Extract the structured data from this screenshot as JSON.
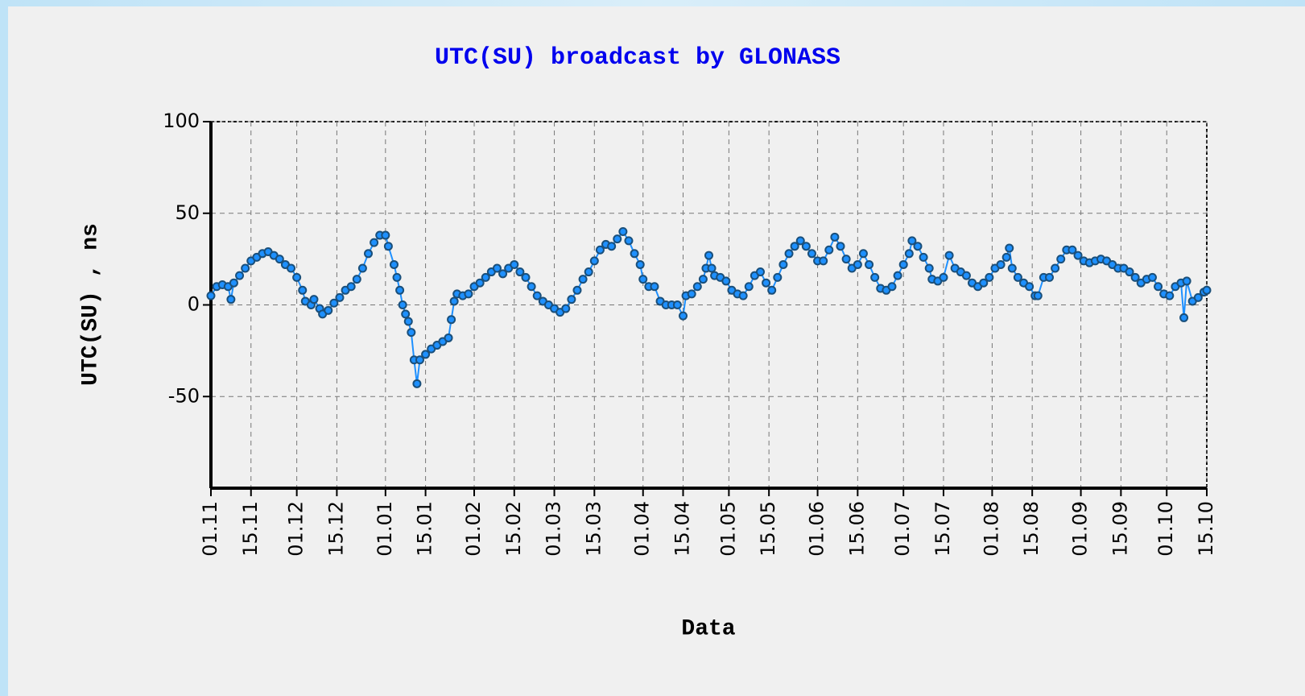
{
  "chart_data": {
    "type": "line",
    "title": "UTC(SU) broadcast by GLONASS",
    "x_label": "Data",
    "y_label": "UTC(SU) , ns",
    "color": "#1e90ff",
    "marker_color": "#1a4f7a",
    "grid": true,
    "xlim": [
      0,
      348
    ],
    "ylim": [
      -100,
      100
    ],
    "yticks": [
      -50,
      0,
      50,
      100
    ],
    "xticks": [
      {
        "value": 0,
        "label": "01.11"
      },
      {
        "value": 14,
        "label": "15.11"
      },
      {
        "value": 30,
        "label": "01.12"
      },
      {
        "value": 44,
        "label": "15.12"
      },
      {
        "value": 61,
        "label": "01.01"
      },
      {
        "value": 75,
        "label": "15.01"
      },
      {
        "value": 92,
        "label": "01.02"
      },
      {
        "value": 106,
        "label": "15.02"
      },
      {
        "value": 120,
        "label": "01.03"
      },
      {
        "value": 134,
        "label": "15.03"
      },
      {
        "value": 151,
        "label": "01.04"
      },
      {
        "value": 165,
        "label": "15.04"
      },
      {
        "value": 181,
        "label": "01.05"
      },
      {
        "value": 195,
        "label": "15.05"
      },
      {
        "value": 212,
        "label": "01.06"
      },
      {
        "value": 226,
        "label": "15.06"
      },
      {
        "value": 242,
        "label": "01.07"
      },
      {
        "value": 256,
        "label": "15.07"
      },
      {
        "value": 273,
        "label": "01.08"
      },
      {
        "value": 287,
        "label": "15.08"
      },
      {
        "value": 304,
        "label": "01.09"
      },
      {
        "value": 318,
        "label": "15.09"
      },
      {
        "value": 334,
        "label": "01.10"
      },
      {
        "value": 348,
        "label": "15.10"
      }
    ],
    "x": [
      0,
      2,
      4,
      6,
      7,
      8,
      10,
      12,
      14,
      16,
      18,
      20,
      22,
      24,
      26,
      28,
      30,
      32,
      33,
      35,
      36,
      38,
      39,
      41,
      43,
      45,
      47,
      49,
      51,
      53,
      55,
      57,
      59,
      61,
      62,
      64,
      65,
      66,
      67,
      68,
      69,
      70,
      71,
      72,
      73,
      75,
      77,
      79,
      81,
      83,
      84,
      85,
      86,
      88,
      90,
      92,
      94,
      96,
      98,
      100,
      102,
      104,
      106,
      108,
      110,
      112,
      114,
      116,
      118,
      120,
      122,
      124,
      126,
      128,
      130,
      132,
      134,
      136,
      138,
      140,
      142,
      144,
      146,
      148,
      150,
      151,
      153,
      155,
      157,
      159,
      161,
      163,
      165,
      166,
      168,
      170,
      172,
      173,
      174,
      175,
      176,
      178,
      180,
      182,
      184,
      186,
      188,
      190,
      192,
      194,
      196,
      198,
      200,
      202,
      204,
      206,
      208,
      210,
      212,
      214,
      216,
      218,
      220,
      222,
      224,
      226,
      228,
      230,
      232,
      234,
      236,
      238,
      240,
      242,
      244,
      245,
      247,
      249,
      251,
      252,
      254,
      256,
      258,
      260,
      262,
      264,
      266,
      268,
      270,
      272,
      274,
      276,
      278,
      279,
      280,
      282,
      284,
      286,
      288,
      289,
      291,
      293,
      295,
      297,
      299,
      301,
      303,
      305,
      307,
      309,
      311,
      313,
      315,
      317,
      319,
      321,
      323,
      325,
      327,
      329,
      331,
      333,
      335,
      337,
      339,
      340,
      341,
      343,
      345,
      347,
      348
    ],
    "values": [
      5,
      10,
      11,
      10,
      3,
      12,
      16,
      20,
      24,
      26,
      28,
      29,
      27,
      25,
      22,
      20,
      15,
      8,
      2,
      0,
      3,
      -2,
      -5,
      -3,
      1,
      4,
      8,
      10,
      14,
      20,
      28,
      34,
      38,
      38,
      32,
      22,
      15,
      8,
      0,
      -5,
      -9,
      -15,
      -30,
      -43,
      -30,
      -27,
      -24,
      -22,
      -20,
      -18,
      -8,
      2,
      6,
      5,
      6,
      10,
      12,
      15,
      18,
      20,
      17,
      20,
      22,
      18,
      15,
      10,
      5,
      2,
      0,
      -2,
      -4,
      -2,
      3,
      8,
      14,
      18,
      24,
      30,
      33,
      32,
      36,
      40,
      35,
      28,
      22,
      14,
      10,
      10,
      2,
      0,
      0,
      0,
      -6,
      5,
      6,
      10,
      14,
      20,
      27,
      20,
      16,
      15,
      13,
      8,
      6,
      5,
      10,
      16,
      18,
      12,
      8,
      15,
      22,
      28,
      32,
      35,
      32,
      28,
      24,
      24,
      30,
      37,
      32,
      25,
      20,
      22,
      28,
      22,
      15,
      9,
      8,
      10,
      16,
      22,
      28,
      35,
      32,
      26,
      20,
      14,
      13,
      15,
      27,
      20,
      18,
      16,
      12,
      10,
      12,
      15,
      20,
      22,
      26,
      31,
      20,
      15,
      12,
      10,
      5,
      5,
      15,
      15,
      20,
      25,
      30,
      30,
      27,
      24,
      23,
      24,
      25,
      24,
      22,
      20,
      20,
      18,
      15,
      12,
      14,
      15,
      10,
      6,
      5,
      10,
      12,
      -7,
      13,
      2,
      4,
      7,
      8
    ]
  }
}
